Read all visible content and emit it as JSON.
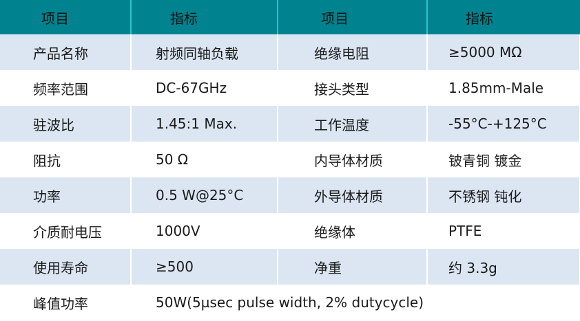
{
  "header": [
    "项目",
    "指标",
    "项目",
    "指标"
  ],
  "rows": [
    [
      "产品名称",
      "射频同轴负载",
      "绝缘电阻",
      "≥5000 MΩ"
    ],
    [
      "频率范围",
      "DC-67GHz",
      "接头类型",
      "1.85mm-Male"
    ],
    [
      "驻波比",
      "1.45:1 Max.",
      "工作温度",
      "-55°C-+125°C"
    ],
    [
      "阻抗",
      "50 Ω",
      "内导体材质",
      "铍青铜 镀金"
    ],
    [
      "功率",
      "0.5 W@25°C",
      "外导体材质",
      "不锈钢 钝化"
    ],
    [
      "介质耐电压",
      "1000V",
      "绝缘体",
      "PTFE"
    ],
    [
      "使用寿命",
      "≥500",
      "净重",
      "约 3.3g"
    ]
  ],
  "last_row": [
    "峰值功率",
    "50W(5µsec pulse width, 2% dutycycle)"
  ],
  "colors": {
    "header_bg": "#00838f",
    "alt_row_bg": "#dce6f2"
  }
}
